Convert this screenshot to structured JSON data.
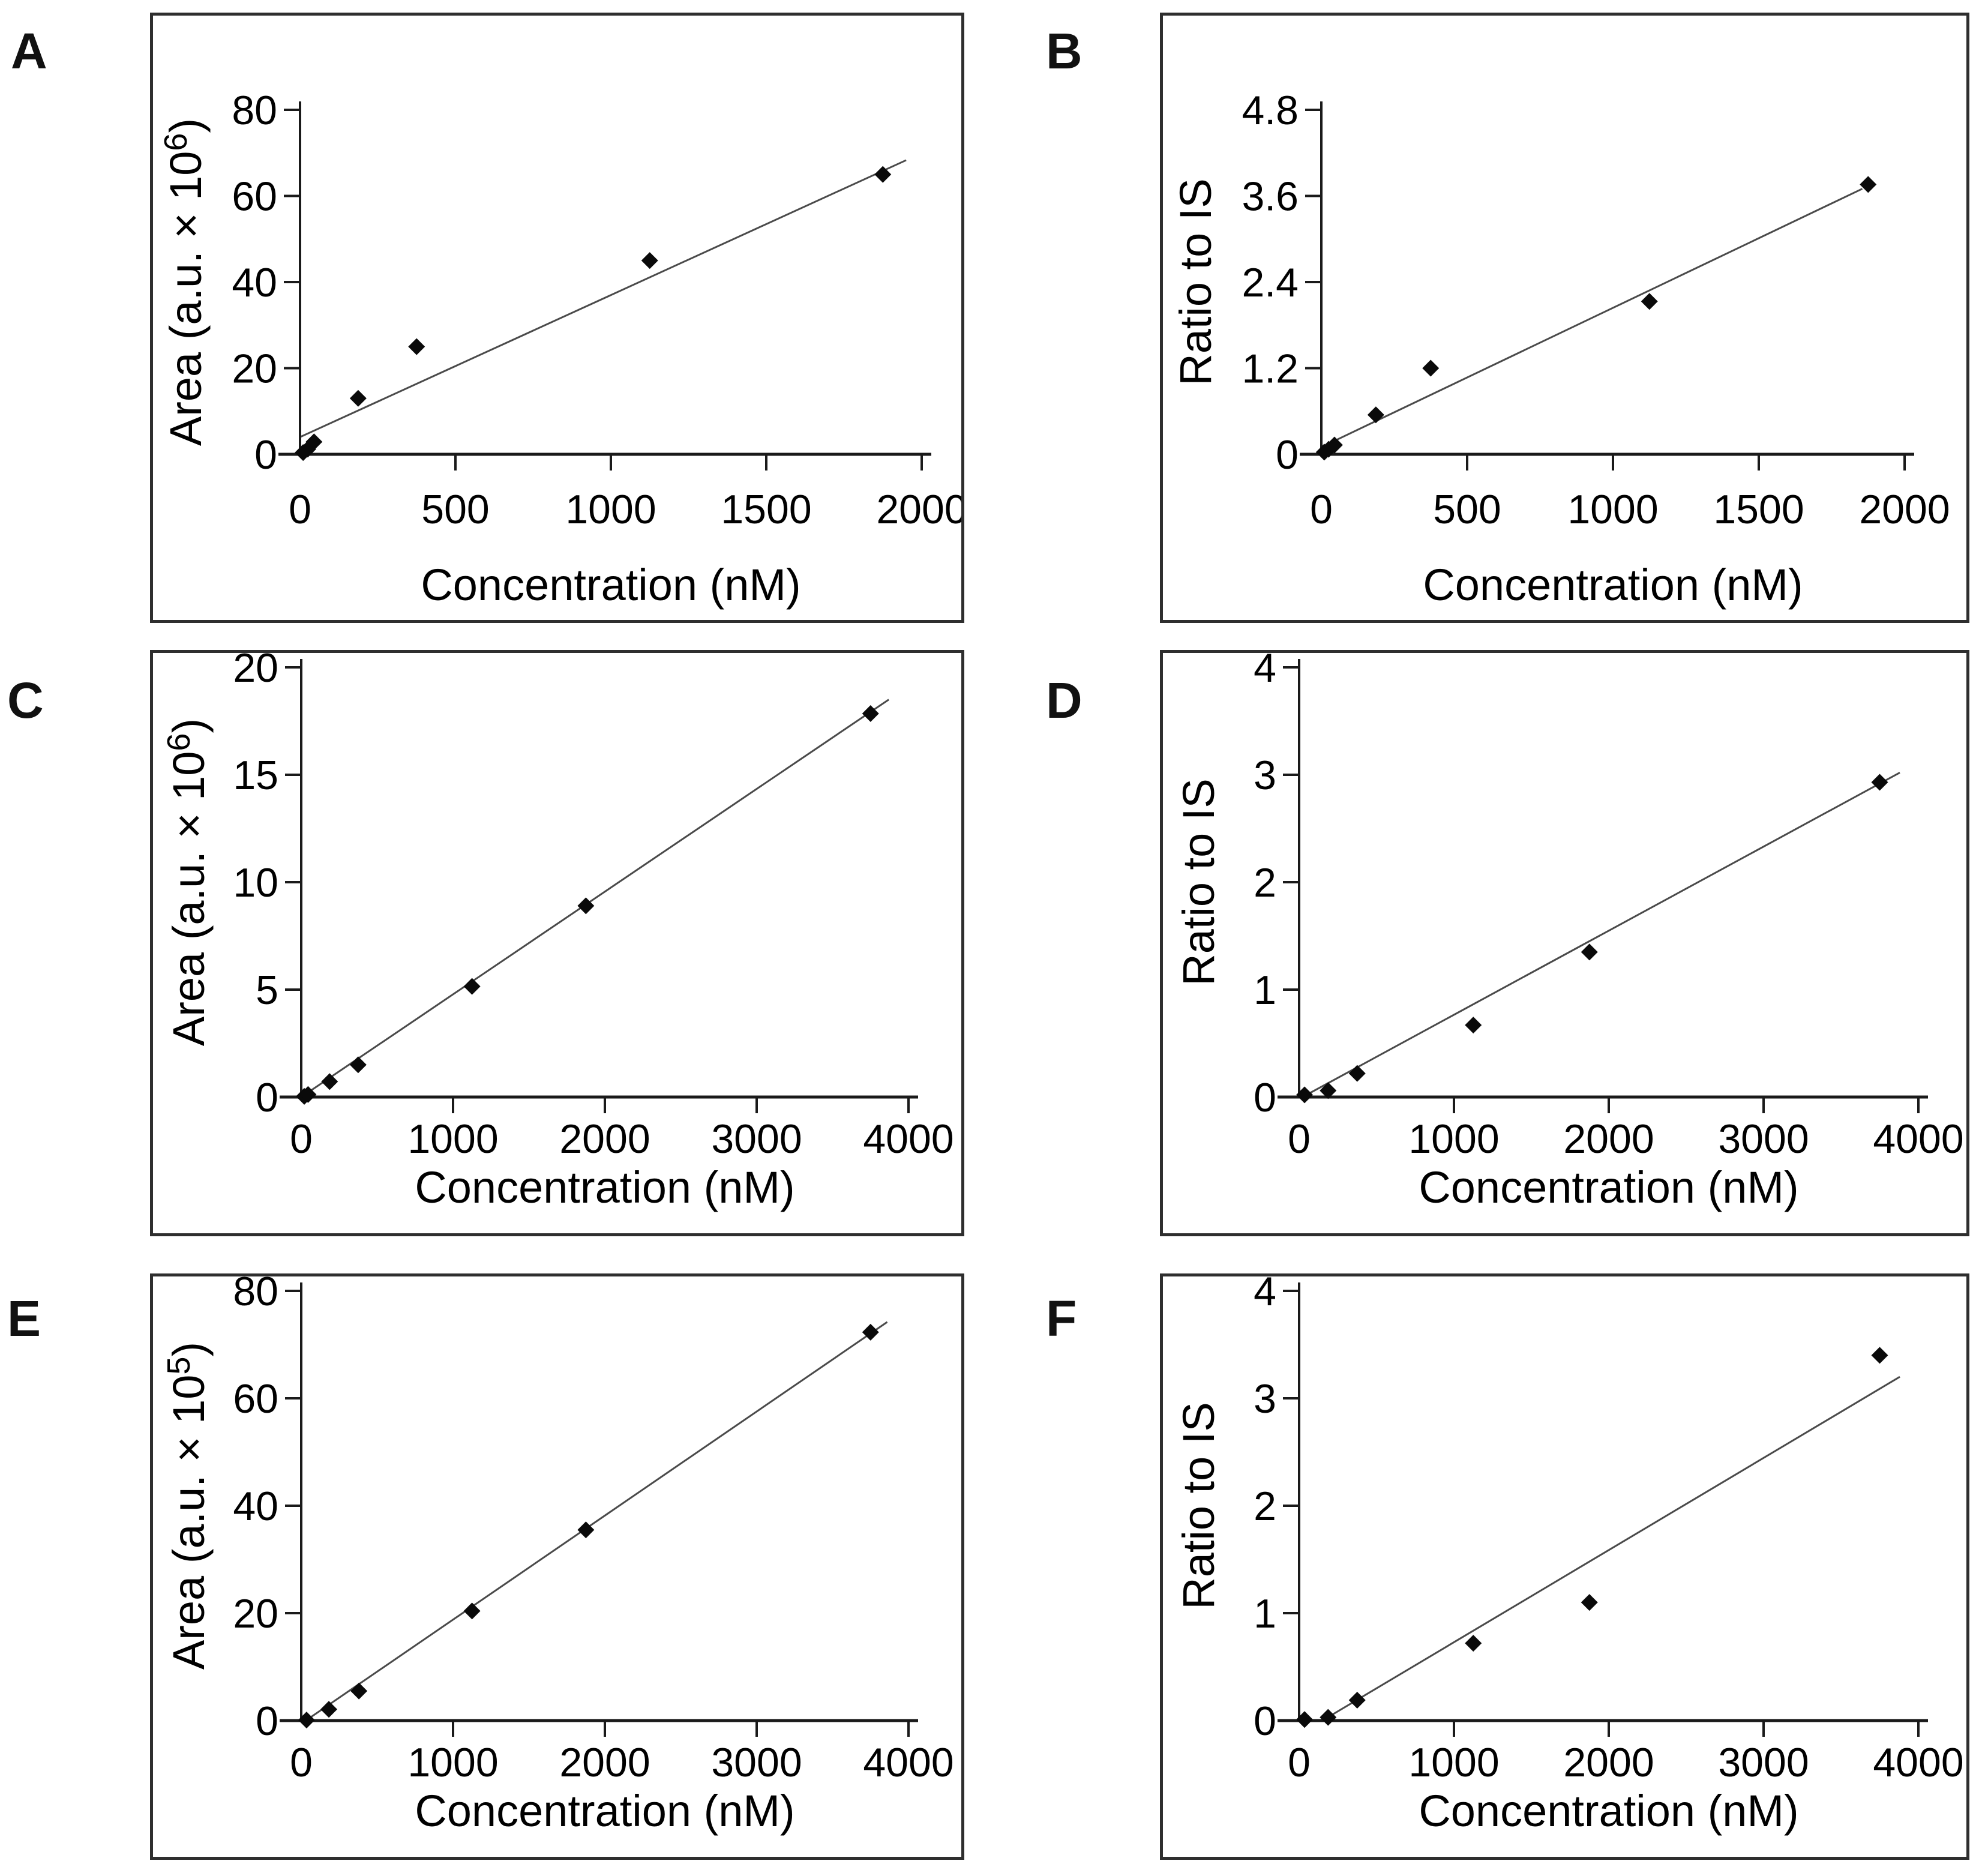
{
  "figure": {
    "description": "Six-panel calibration curve figure",
    "colors": {
      "background": "#ffffff",
      "marker": "#0a0a0a",
      "trend_line": "#4a4a4a",
      "axis": "#1a1a1a",
      "border": "#2e2e2e",
      "text": "#000000"
    }
  },
  "chart_data": [
    {
      "panel": "A",
      "type": "scatter",
      "xlabel": "Concentration (nM)",
      "ylabel": {
        "prefix": "Area (a.u. × 10",
        "sup": "6",
        "suffix": ")"
      },
      "xlim": [
        0,
        2000
      ],
      "ylim": [
        0,
        80
      ],
      "xticks": [
        0,
        500,
        1000,
        1500,
        2000
      ],
      "yticks": [
        0,
        20,
        40,
        60,
        80
      ],
      "grid": false,
      "legend": "none",
      "points": [
        [
          10,
          0.4
        ],
        [
          25,
          1.2
        ],
        [
          45,
          2.9
        ],
        [
          187,
          13
        ],
        [
          375,
          25
        ],
        [
          1125,
          45
        ],
        [
          1875,
          65
        ]
      ],
      "trend": [
        [
          0,
          4
        ],
        [
          1950,
          68.3
        ]
      ]
    },
    {
      "panel": "B",
      "type": "scatter",
      "xlabel": "Concentration (nM)",
      "ylabel": {
        "prefix": "Ratio to IS",
        "sup": "",
        "suffix": ""
      },
      "xlim": [
        0,
        2000
      ],
      "ylim": [
        0,
        4.8
      ],
      "xticks": [
        0,
        500,
        1000,
        1500,
        2000
      ],
      "yticks": [
        0,
        1.2,
        2.4,
        3.6,
        4.8
      ],
      "grid": false,
      "legend": "none",
      "points": [
        [
          10,
          0.03
        ],
        [
          25,
          0.07
        ],
        [
          45,
          0.13
        ],
        [
          187,
          0.55
        ],
        [
          375,
          1.2
        ],
        [
          1125,
          2.13
        ],
        [
          1875,
          3.76
        ]
      ],
      "trend": [
        [
          0,
          0.1
        ],
        [
          1855,
          3.7
        ]
      ]
    },
    {
      "panel": "C",
      "type": "scatter",
      "xlabel": "Concentration (nM)",
      "ylabel": {
        "prefix": "Area (a.u. × 10",
        "sup": "6",
        "suffix": ")"
      },
      "xlim": [
        0,
        4000
      ],
      "ylim": [
        0,
        20
      ],
      "xticks": [
        0,
        1000,
        2000,
        3000,
        4000
      ],
      "yticks": [
        0,
        5,
        10,
        15,
        20
      ],
      "grid": false,
      "legend": "none",
      "points": [
        [
          20,
          0.03
        ],
        [
          45,
          0.12
        ],
        [
          187,
          0.72
        ],
        [
          375,
          1.5
        ],
        [
          1125,
          5.15
        ],
        [
          1875,
          8.9
        ],
        [
          3750,
          17.85
        ]
      ],
      "trend": [
        [
          0,
          0
        ],
        [
          3870,
          18.5
        ]
      ]
    },
    {
      "panel": "D",
      "type": "scatter",
      "xlabel": "Concentration (nM)",
      "ylabel": {
        "prefix": "Ratio to IS",
        "sup": "",
        "suffix": ""
      },
      "xlim": [
        0,
        4000
      ],
      "ylim": [
        0,
        4
      ],
      "xticks": [
        0,
        1000,
        2000,
        3000,
        4000
      ],
      "yticks": [
        0,
        1,
        2,
        3,
        4
      ],
      "grid": false,
      "legend": "none",
      "points": [
        [
          35,
          0.02
        ],
        [
          187,
          0.06
        ],
        [
          375,
          0.22
        ],
        [
          1125,
          0.67
        ],
        [
          1875,
          1.35
        ],
        [
          3750,
          2.93
        ]
      ],
      "trend": [
        [
          60,
          0.03
        ],
        [
          3880,
          3.02
        ]
      ]
    },
    {
      "panel": "E",
      "type": "scatter",
      "xlabel": "Concentration (nM)",
      "ylabel": {
        "prefix": "Area (a.u. × 10",
        "sup": "5",
        "suffix": ")"
      },
      "xlim": [
        0,
        4000
      ],
      "ylim": [
        0,
        80
      ],
      "xticks": [
        0,
        1000,
        2000,
        3000,
        4000
      ],
      "yticks": [
        0,
        20,
        40,
        60,
        80
      ],
      "grid": false,
      "legend": "none",
      "points": [
        [
          35,
          0.1
        ],
        [
          182,
          2.1
        ],
        [
          380,
          5.5
        ],
        [
          1125,
          20.4
        ],
        [
          1875,
          35.5
        ],
        [
          3750,
          72.3
        ]
      ],
      "trend": [
        [
          30,
          0
        ],
        [
          3860,
          74.2
        ]
      ]
    },
    {
      "panel": "F",
      "type": "scatter",
      "xlabel": "Concentration (nM)",
      "ylabel": {
        "prefix": "Ratio to IS",
        "sup": "",
        "suffix": ""
      },
      "xlim": [
        0,
        4000
      ],
      "ylim": [
        0,
        4
      ],
      "xticks": [
        0,
        1000,
        2000,
        3000,
        4000
      ],
      "yticks": [
        0,
        1,
        2,
        3,
        4
      ],
      "grid": false,
      "legend": "none",
      "points": [
        [
          35,
          0.01
        ],
        [
          187,
          0.03
        ],
        [
          375,
          0.19
        ],
        [
          1125,
          0.72
        ],
        [
          1875,
          1.1
        ],
        [
          3750,
          3.4
        ]
      ],
      "trend": [
        [
          150,
          0
        ],
        [
          3880,
          3.2
        ]
      ]
    }
  ]
}
